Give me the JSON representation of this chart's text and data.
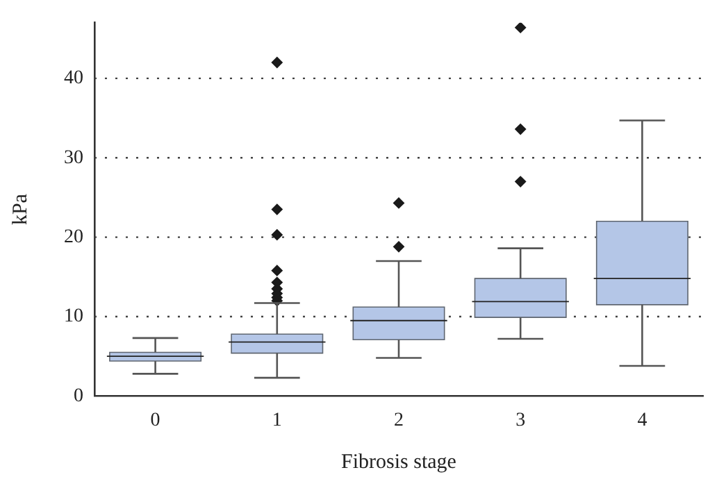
{
  "chart_data": {
    "type": "box",
    "xlabel": "Fibrosis stage",
    "ylabel": "kPa",
    "categories": [
      "0",
      "1",
      "2",
      "3",
      "4"
    ],
    "color": "#b4c6e7",
    "marker": "diamond",
    "grid": "y",
    "ylim": [
      0,
      47
    ],
    "yticks": [
      0,
      10,
      20,
      30,
      40
    ],
    "boxes": [
      {
        "low": 2.8,
        "q1": 4.4,
        "median": 5.0,
        "q3": 5.5,
        "high": 7.3
      },
      {
        "low": 2.3,
        "q1": 5.4,
        "median": 6.8,
        "q3": 7.8,
        "high": 11.7,
        "outliers": [
          12.0,
          12.4,
          12.9,
          13.5,
          14.3,
          15.8,
          20.3,
          23.5,
          42.0
        ]
      },
      {
        "low": 4.8,
        "q1": 7.1,
        "median": 9.5,
        "q3": 11.2,
        "high": 17.0,
        "outliers": [
          18.8,
          24.3
        ]
      },
      {
        "low": 7.2,
        "q1": 9.9,
        "median": 11.9,
        "q3": 14.8,
        "high": 18.6,
        "outliers": [
          27.0,
          33.6,
          46.4
        ]
      },
      {
        "low": 3.8,
        "q1": 11.5,
        "median": 14.8,
        "q3": 22.0,
        "high": 34.7
      }
    ]
  }
}
